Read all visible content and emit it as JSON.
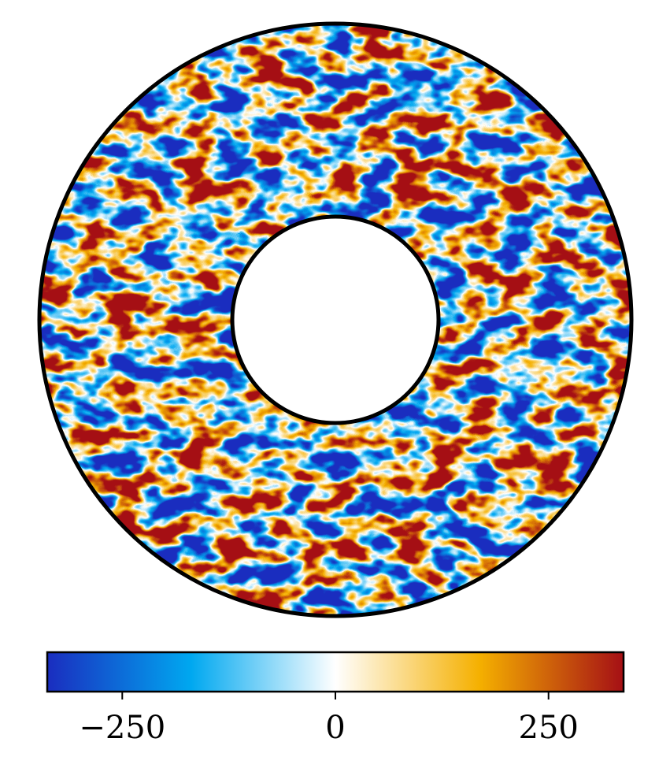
{
  "chart_data": {
    "type": "heatmap",
    "colormap": [
      "#1a2dbf",
      "#00a8f0",
      "#ffffff",
      "#f5b000",
      "#a50f15"
    ],
    "xlim": [
      -338,
      338
    ],
    "xticks": [
      {
        "value": -250,
        "label": "−250"
      },
      0,
      250
    ]
  }
}
